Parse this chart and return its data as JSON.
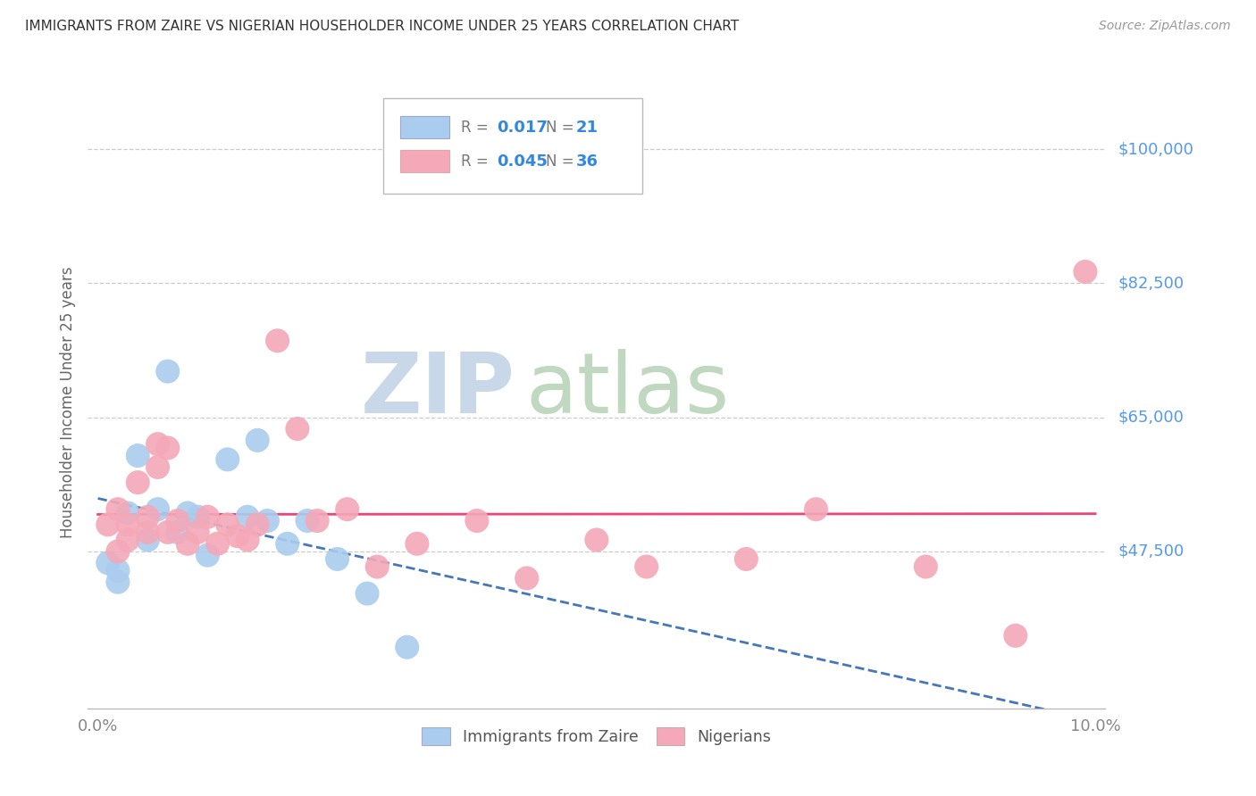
{
  "title": "IMMIGRANTS FROM ZAIRE VS NIGERIAN HOUSEHOLDER INCOME UNDER 25 YEARS CORRELATION CHART",
  "source": "Source: ZipAtlas.com",
  "ylabel": "Householder Income Under 25 years",
  "ytick_labels": [
    "$47,500",
    "$65,000",
    "$82,500",
    "$100,000"
  ],
  "ytick_values": [
    47500,
    65000,
    82500,
    100000
  ],
  "ylim": [
    27000,
    107000
  ],
  "xlim": [
    -0.001,
    0.101
  ],
  "legend1_r": "0.017",
  "legend1_n": "21",
  "legend2_r": "0.045",
  "legend2_n": "36",
  "zaire_color": "#aaccee",
  "nigerian_color": "#f4a8b8",
  "zaire_line_color": "#4477bb",
  "nigerian_line_color": "#ee4477",
  "watermark_zip": "ZIP",
  "watermark_atlas": "atlas",
  "watermark_color_zip": "#c8d8e8",
  "watermark_color_atlas": "#c0d8c0",
  "zaire_x": [
    0.001,
    0.002,
    0.002,
    0.003,
    0.004,
    0.005,
    0.006,
    0.007,
    0.008,
    0.009,
    0.01,
    0.011,
    0.013,
    0.015,
    0.016,
    0.017,
    0.019,
    0.021,
    0.024,
    0.027,
    0.031
  ],
  "zaire_y": [
    46000,
    45000,
    43500,
    52500,
    60000,
    49000,
    53000,
    71000,
    50000,
    52500,
    52000,
    47000,
    59500,
    52000,
    62000,
    51500,
    48500,
    51500,
    46500,
    42000,
    35000
  ],
  "nigerian_x": [
    0.001,
    0.002,
    0.002,
    0.003,
    0.003,
    0.004,
    0.005,
    0.005,
    0.006,
    0.006,
    0.007,
    0.007,
    0.008,
    0.009,
    0.01,
    0.011,
    0.012,
    0.013,
    0.014,
    0.015,
    0.016,
    0.018,
    0.02,
    0.022,
    0.025,
    0.028,
    0.032,
    0.038,
    0.043,
    0.05,
    0.055,
    0.065,
    0.072,
    0.083,
    0.092,
    0.099
  ],
  "nigerian_y": [
    51000,
    53000,
    47500,
    51000,
    49000,
    56500,
    52000,
    50000,
    58500,
    61500,
    61000,
    50000,
    51500,
    48500,
    50000,
    52000,
    48500,
    51000,
    49500,
    49000,
    51000,
    75000,
    63500,
    51500,
    53000,
    45500,
    48500,
    51500,
    44000,
    49000,
    45500,
    46500,
    53000,
    45500,
    36500,
    84000
  ]
}
